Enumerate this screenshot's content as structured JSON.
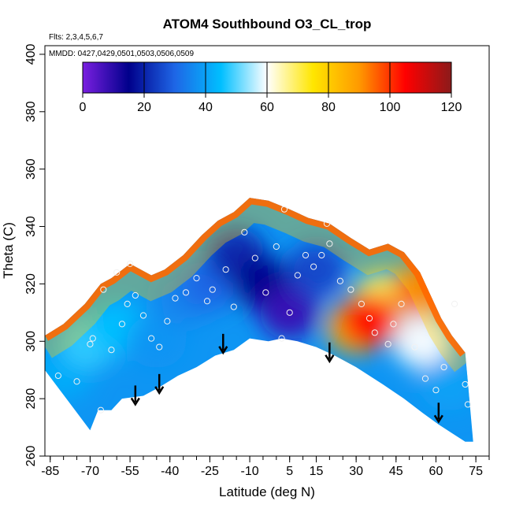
{
  "chart_data": {
    "type": "heatmap",
    "title": "ATOM4 Southbound O3_CL_trop",
    "notes": [
      "Flts: 2,3,4,5,6,7",
      "MMDD: 0427,0429,0501,0503,0506,0509"
    ],
    "xlabel": "Latitude (deg N)",
    "ylabel": "Theta (C)",
    "xlim": [
      -87,
      80
    ],
    "ylim": [
      260,
      403
    ],
    "xticks": [
      -85,
      -70,
      -55,
      -40,
      -25,
      -10,
      5,
      15,
      30,
      45,
      60,
      75
    ],
    "yticks": [
      260,
      280,
      300,
      320,
      340,
      360,
      380,
      400
    ],
    "grid": false,
    "colorbar": {
      "range": [
        0,
        120
      ],
      "ticks": [
        0,
        20,
        40,
        60,
        80,
        100,
        120
      ],
      "colors": [
        "#7a1fe0",
        "#00008b",
        "#1e66e6",
        "#00bfff",
        "#ffffff",
        "#ffe600",
        "#ff9900",
        "#ff0000",
        "#8b1a1a"
      ],
      "placement": "top inside plot"
    },
    "surface_theta": [
      [
        -70,
        269
      ],
      [
        -67,
        276
      ],
      [
        -62,
        276
      ],
      [
        -58,
        280
      ],
      [
        -50,
        281
      ],
      [
        -44,
        284
      ],
      [
        -37,
        288
      ],
      [
        -30,
        291
      ],
      [
        -23,
        295
      ],
      [
        -16,
        297
      ],
      [
        -10,
        301
      ],
      [
        -3,
        300
      ],
      [
        2,
        301
      ],
      [
        8,
        300
      ],
      [
        15,
        298
      ],
      [
        22,
        295
      ],
      [
        30,
        291
      ],
      [
        40,
        285
      ],
      [
        48,
        280
      ],
      [
        55,
        275
      ],
      [
        61,
        271
      ],
      [
        66,
        268
      ],
      [
        71,
        265
      ]
    ],
    "upper_edge_theta": [
      [
        -87,
        302
      ],
      [
        -80,
        306
      ],
      [
        -72,
        313
      ],
      [
        -66,
        320
      ],
      [
        -62,
        322
      ],
      [
        -55,
        327
      ],
      [
        -47,
        323
      ],
      [
        -42,
        325
      ],
      [
        -35,
        330
      ],
      [
        -28,
        337
      ],
      [
        -22,
        342
      ],
      [
        -16,
        345
      ],
      [
        -10,
        350
      ],
      [
        -3,
        349
      ],
      [
        5,
        346
      ],
      [
        12,
        343
      ],
      [
        20,
        341
      ],
      [
        28,
        336
      ],
      [
        35,
        332
      ],
      [
        42,
        334
      ],
      [
        48,
        331
      ],
      [
        54,
        324
      ],
      [
        58,
        316
      ],
      [
        62,
        308
      ],
      [
        66,
        302
      ],
      [
        71,
        296
      ]
    ],
    "ozone_regions": [
      {
        "lat": -80,
        "theta": 289,
        "o3": 42
      },
      {
        "lat": -70,
        "theta": 300,
        "o3": 48
      },
      {
        "lat": -60,
        "theta": 305,
        "o3": 45
      },
      {
        "lat": -45,
        "theta": 300,
        "o3": 38
      },
      {
        "lat": -35,
        "theta": 315,
        "o3": 35
      },
      {
        "lat": -25,
        "theta": 320,
        "o3": 30
      },
      {
        "lat": -15,
        "theta": 330,
        "o3": 20
      },
      {
        "lat": -5,
        "theta": 320,
        "o3": 15
      },
      {
        "lat": 5,
        "theta": 310,
        "o3": 8
      },
      {
        "lat": 15,
        "theta": 325,
        "o3": 25
      },
      {
        "lat": 30,
        "theta": 305,
        "o3": 85
      },
      {
        "lat": 40,
        "theta": 315,
        "o3": 70
      },
      {
        "lat": 55,
        "theta": 300,
        "o3": 60
      },
      {
        "lat": 65,
        "theta": 285,
        "o3": 40
      },
      {
        "lat": 35,
        "theta": 307,
        "o3": 105
      },
      {
        "lat": 55,
        "theta": 318,
        "o3": 95
      }
    ],
    "observations": [
      [
        -82,
        288
      ],
      [
        -75,
        286
      ],
      [
        -70,
        299
      ],
      [
        -69,
        301
      ],
      [
        -66,
        276
      ],
      [
        -62,
        297
      ],
      [
        -58,
        306
      ],
      [
        -56,
        313
      ],
      [
        -53,
        316
      ],
      [
        -50,
        309
      ],
      [
        -47,
        301
      ],
      [
        -44,
        298
      ],
      [
        -41,
        307
      ],
      [
        -38,
        315
      ],
      [
        -34,
        317
      ],
      [
        -30,
        322
      ],
      [
        -26,
        314
      ],
      [
        -24,
        318
      ],
      [
        -19,
        325
      ],
      [
        -16,
        312
      ],
      [
        -12,
        338
      ],
      [
        -8,
        329
      ],
      [
        -4,
        317
      ],
      [
        0,
        333
      ],
      [
        2,
        301
      ],
      [
        5,
        310
      ],
      [
        8,
        323
      ],
      [
        11,
        330
      ],
      [
        14,
        326
      ],
      [
        17,
        330
      ],
      [
        19,
        341
      ],
      [
        20,
        334
      ],
      [
        24,
        321
      ],
      [
        28,
        318
      ],
      [
        32,
        313
      ],
      [
        35,
        308
      ],
      [
        37,
        303
      ],
      [
        42,
        299
      ],
      [
        44,
        306
      ],
      [
        47,
        313
      ],
      [
        52,
        298
      ],
      [
        56,
        287
      ],
      [
        60,
        283
      ],
      [
        63,
        291
      ],
      [
        67,
        313
      ],
      [
        71,
        285
      ],
      [
        72,
        278
      ],
      [
        -55,
        327
      ],
      [
        -60,
        324
      ],
      [
        -65,
        318
      ],
      [
        3,
        346
      ]
    ],
    "arrows": [
      {
        "lat": -53,
        "theta": 278
      },
      {
        "lat": -44,
        "theta": 282
      },
      {
        "lat": -20,
        "theta": 296
      },
      {
        "lat": 20,
        "theta": 293
      },
      {
        "lat": 61,
        "theta": 272
      }
    ]
  }
}
